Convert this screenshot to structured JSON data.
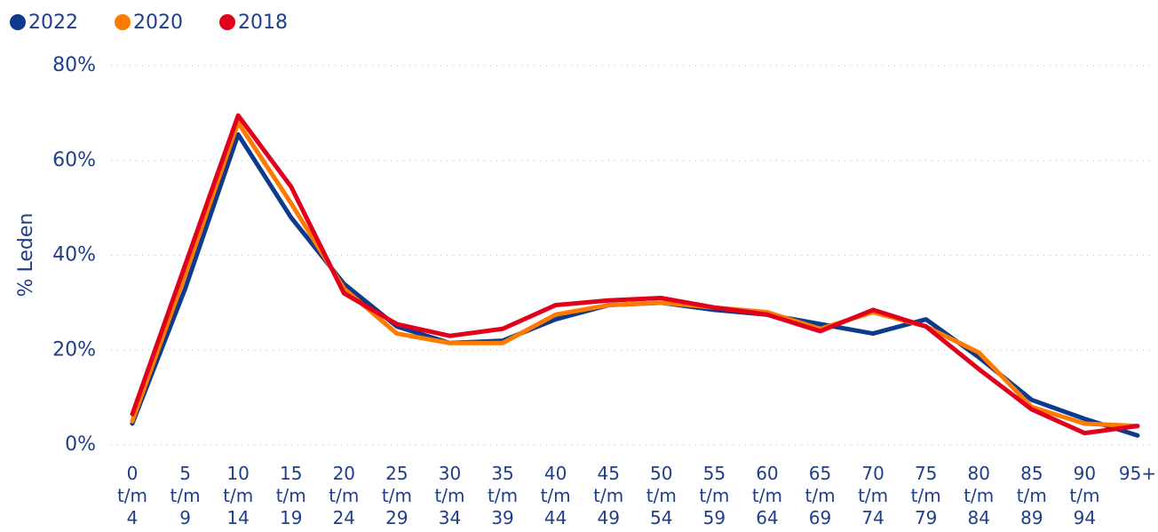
{
  "chart_data": {
    "type": "line",
    "y_label": "% Leden",
    "categories": [
      "0\nt/m\n4",
      "5\nt/m\n9",
      "10\nt/m\n14",
      "15\nt/m\n19",
      "20\nt/m\n24",
      "25\nt/m\n29",
      "30\nt/m\n34",
      "35\nt/m\n39",
      "40\nt/m\n44",
      "45\nt/m\n49",
      "50\nt/m\n54",
      "55\nt/m\n59",
      "60\nt/m\n64",
      "65\nt/m\n69",
      "70\nt/m\n74",
      "75\nt/m\n79",
      "80\nt/m\n84",
      "85\nt/m\n89",
      "90\nt/m\n94",
      "95+"
    ],
    "series": [
      {
        "name": "2022",
        "color": "#0d3a8c",
        "values": [
          4.5,
          33,
          65.5,
          48,
          34,
          25,
          21.5,
          22,
          26.5,
          29.5,
          30,
          28.5,
          27.5,
          25.5,
          23.5,
          26.5,
          18.5,
          9.5,
          5.5,
          2
        ]
      },
      {
        "name": "2020",
        "color": "#ff7a00",
        "values": [
          5,
          36,
          68,
          51,
          33,
          23.5,
          21.5,
          21.5,
          27.5,
          29.5,
          30,
          29,
          28,
          24.5,
          28,
          25,
          19.5,
          8,
          4.5,
          4
        ]
      },
      {
        "name": "2018",
        "color": "#e0001b",
        "values": [
          6.5,
          38,
          69.5,
          54.5,
          32,
          25.5,
          23,
          24.5,
          29.5,
          30.5,
          31,
          29,
          27.5,
          24,
          28.5,
          25,
          16,
          7.5,
          2.5,
          4
        ]
      }
    ],
    "ylim": [
      0,
      80
    ],
    "yticks": [
      {
        "value": 0,
        "label": "0%"
      },
      {
        "value": 20,
        "label": "20%"
      },
      {
        "value": 40,
        "label": "40%"
      },
      {
        "value": 60,
        "label": "60%"
      },
      {
        "value": 80,
        "label": "80%"
      }
    ],
    "grid": true,
    "legend": "top-left"
  }
}
